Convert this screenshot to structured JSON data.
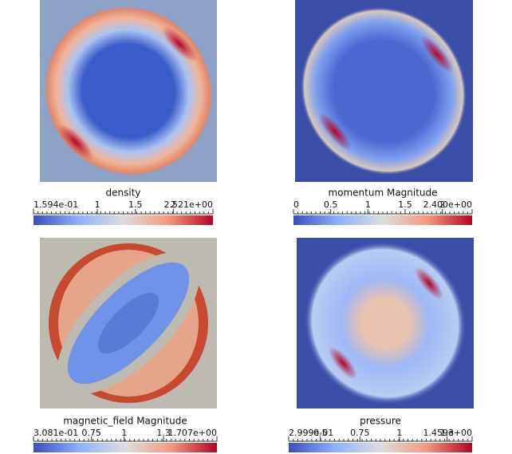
{
  "panels": [
    {
      "title": "density",
      "ticks": [
        {
          "value": 0.1594,
          "label": "1.594e-01"
        },
        1,
        1.5,
        2,
        {
          "value": 2.521,
          "label": "2.521e+00"
        }
      ]
    },
    {
      "title": "momentum Magnitude",
      "ticks": [
        0,
        0.5,
        1,
        1.5,
        2,
        {
          "value": 2.4,
          "label": "2.400e+00"
        }
      ]
    },
    {
      "title": "magnetic_field Magnitude",
      "ticks": [
        {
          "value": 0.3081,
          "label": "3.081e-01"
        },
        0.75,
        1,
        1.3,
        {
          "value": 1.707,
          "label": "1.707e+00"
        }
      ]
    },
    {
      "title": "pressure",
      "ticks": [
        {
          "value": 0.2999,
          "label": "2.999e-01"
        },
        0.5,
        0.75,
        1,
        1.3,
        {
          "value": 1.459,
          "label": "1.459e+00"
        }
      ]
    }
  ]
}
